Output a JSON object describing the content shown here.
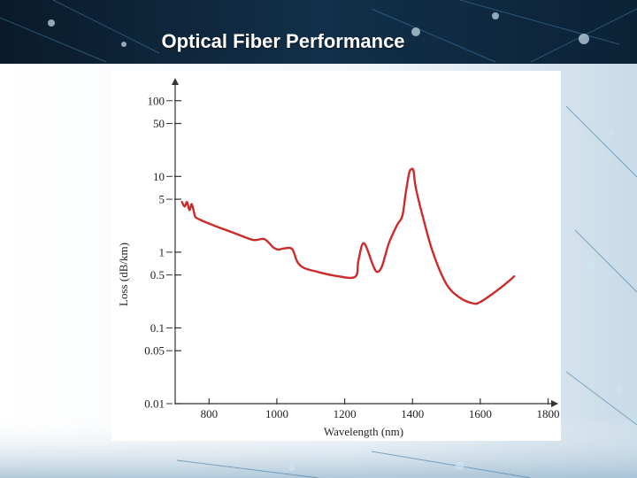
{
  "slide": {
    "title": "Optical Fiber Performance"
  },
  "colors": {
    "curve": "#cc2b2b",
    "axis": "#333333",
    "header": "#0d2236"
  },
  "chart_data": {
    "type": "line",
    "title": "",
    "xlabel": "Wavelength (nm)",
    "ylabel": "Loss (dB/km)",
    "xlim": [
      700,
      1830
    ],
    "ylim": [
      0.01,
      200
    ],
    "y_scale": "log",
    "grid": false,
    "x_ticks": [
      800,
      1000,
      1200,
      1400,
      1600,
      1800
    ],
    "y_ticks": [
      {
        "value": 100,
        "label": "100"
      },
      {
        "value": 50,
        "label": "50"
      },
      {
        "value": 10,
        "label": "10"
      },
      {
        "value": 5,
        "label": "5"
      },
      {
        "value": 1,
        "label": "1"
      },
      {
        "value": 0.5,
        "label": "0.5"
      },
      {
        "value": 0.1,
        "label": "0.1"
      },
      {
        "value": 0.05,
        "label": "0.05"
      },
      {
        "value": 0.01,
        "label": "0.01"
      }
    ],
    "series": [
      {
        "x": [
          720,
          728,
          735,
          742,
          748,
          752,
          756,
          760,
          780,
          820,
          880,
          930,
          960,
          975,
          990,
          1005,
          1020,
          1045,
          1060,
          1080,
          1120,
          1170,
          1230,
          1240,
          1250,
          1258,
          1268,
          1282,
          1295,
          1310,
          1330,
          1355,
          1370,
          1380,
          1390,
          1397,
          1403,
          1410,
          1430,
          1460,
          1500,
          1540,
          1580,
          1600,
          1640,
          1680,
          1700
        ],
        "y": [
          4.6,
          4.0,
          4.6,
          3.6,
          4.3,
          3.9,
          3.3,
          2.9,
          2.6,
          2.2,
          1.75,
          1.45,
          1.5,
          1.35,
          1.15,
          1.08,
          1.12,
          1.1,
          0.75,
          0.62,
          0.55,
          0.49,
          0.47,
          0.75,
          1.2,
          1.3,
          1.05,
          0.7,
          0.55,
          0.65,
          1.3,
          2.3,
          3.0,
          6.0,
          11.0,
          12.5,
          11.8,
          7.0,
          3.0,
          1.0,
          0.38,
          0.25,
          0.21,
          0.22,
          0.29,
          0.4,
          0.48
        ]
      }
    ]
  }
}
